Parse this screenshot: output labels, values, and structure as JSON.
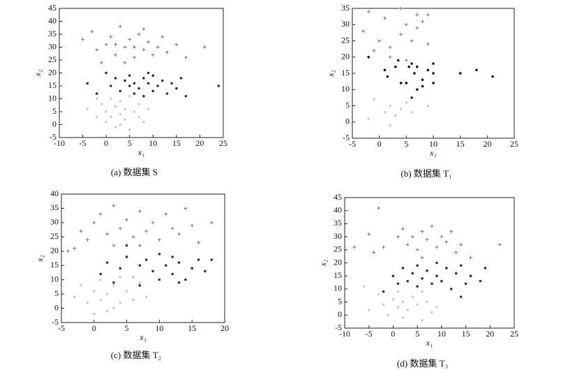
{
  "chart_data": [
    {
      "type": "scatter",
      "caption": "(a) 数据集 S",
      "xlabel": "x₁",
      "ylabel": "x₂",
      "xlim": [
        -10,
        25
      ],
      "ylim": [
        -5,
        45
      ],
      "xticks": [
        -10,
        -5,
        0,
        5,
        10,
        15,
        20,
        25
      ],
      "yticks": [
        -5,
        0,
        5,
        10,
        15,
        20,
        25,
        30,
        35,
        40,
        45
      ],
      "series": [
        {
          "marker": "plus",
          "color": "#777777",
          "x": [
            -5,
            -3,
            -2,
            0,
            1,
            2,
            3,
            4,
            5,
            6,
            7,
            8,
            9,
            10,
            11,
            12,
            13,
            15,
            17,
            21,
            -1,
            4,
            8,
            2,
            6
          ],
          "y": [
            33,
            36,
            29,
            31,
            34,
            27,
            38,
            30,
            33,
            26,
            35,
            29,
            32,
            27,
            30,
            34,
            28,
            31,
            26,
            30,
            24,
            24,
            37,
            31,
            30
          ]
        },
        {
          "marker": "dot",
          "color": "#333333",
          "x": [
            -4,
            -2,
            0,
            1,
            2,
            3,
            4,
            5,
            6,
            6,
            7,
            8,
            8,
            9,
            10,
            10,
            11,
            12,
            13,
            14,
            15,
            16,
            17,
            24,
            5,
            9
          ],
          "y": [
            16,
            12,
            20,
            15,
            18,
            13,
            17,
            19,
            12,
            16,
            14,
            18,
            11,
            16,
            13,
            19,
            15,
            17,
            12,
            16,
            14,
            18,
            11,
            15,
            15,
            20
          ]
        },
        {
          "marker": "dot",
          "color": "#cccccc",
          "x": [
            -4,
            -2,
            -1,
            0,
            0,
            1,
            1,
            2,
            2,
            3,
            3,
            4,
            4,
            5,
            5,
            6,
            7,
            7,
            8,
            9,
            3,
            -2
          ],
          "y": [
            6,
            3,
            8,
            1,
            5,
            10,
            3,
            7,
            -1,
            4,
            9,
            2,
            6,
            11,
            -2,
            5,
            3,
            8,
            1,
            6,
            0,
            10
          ]
        }
      ]
    },
    {
      "type": "scatter",
      "caption": "(b) 数据集 T₁",
      "xlabel": "x₁",
      "ylabel": "x₂",
      "xlim": [
        -5,
        25
      ],
      "ylim": [
        -5,
        35
      ],
      "xticks": [
        -5,
        0,
        5,
        10,
        15,
        20,
        25
      ],
      "yticks": [
        -5,
        0,
        5,
        10,
        15,
        20,
        25,
        30,
        35
      ],
      "series": [
        {
          "marker": "plus",
          "color": "#777777",
          "x": [
            -3,
            -2,
            0,
            1,
            2,
            2,
            4,
            4,
            5,
            6,
            7,
            8,
            9,
            9,
            5,
            -1,
            7
          ],
          "y": [
            28,
            34,
            25,
            32,
            20,
            23,
            27,
            35,
            30,
            25,
            29,
            31,
            33,
            24,
            19,
            22,
            33
          ]
        },
        {
          "marker": "dot",
          "color": "#111111",
          "x": [
            -2,
            1,
            1.5,
            3,
            3.5,
            4,
            5,
            5.5,
            6,
            6.5,
            7,
            7,
            8,
            8,
            9,
            10,
            10,
            10,
            15,
            18,
            21,
            6
          ],
          "y": [
            20,
            16,
            14,
            17,
            19,
            12,
            12,
            17,
            18,
            15,
            10,
            17,
            13,
            11,
            16,
            18,
            15,
            12,
            15,
            16,
            14,
            7.5
          ]
        },
        {
          "marker": "dot",
          "color": "#cccccc",
          "x": [
            -2,
            -1,
            1,
            2,
            3,
            4,
            5,
            6,
            2,
            9
          ],
          "y": [
            1,
            7,
            3,
            5,
            2,
            4,
            6,
            3,
            -1,
            5
          ]
        }
      ]
    },
    {
      "type": "scatter",
      "caption": "(c) 数据集 T₂",
      "xlabel": "x₁",
      "ylabel": "x₂",
      "xlim": [
        -5,
        20
      ],
      "ylim": [
        -5,
        40
      ],
      "xticks": [
        -5,
        0,
        5,
        10,
        15,
        20
      ],
      "yticks": [
        -5,
        0,
        5,
        10,
        15,
        20,
        25,
        30,
        35,
        40
      ],
      "series": [
        {
          "marker": "plus",
          "color": "#777777",
          "x": [
            -4,
            -2,
            -1,
            0,
            1,
            2,
            3,
            4,
            5,
            6,
            7,
            8,
            9,
            10,
            11,
            12,
            13,
            14,
            15,
            16,
            18,
            3,
            7,
            -3
          ],
          "y": [
            20,
            27,
            24,
            30,
            33,
            26,
            36,
            28,
            31,
            25,
            34,
            27,
            30,
            24,
            33,
            28,
            26,
            35,
            29,
            23,
            30,
            22,
            22,
            21
          ]
        },
        {
          "marker": "dot",
          "color": "#333333",
          "x": [
            1,
            2,
            3,
            4,
            5,
            6,
            7,
            7,
            8,
            9,
            10,
            10,
            11,
            12,
            12,
            13,
            14,
            15,
            16,
            17,
            18,
            5,
            13
          ],
          "y": [
            12,
            16,
            9,
            14,
            18,
            11,
            15,
            8,
            17,
            13,
            19,
            10,
            15,
            18,
            12,
            16,
            10,
            14,
            17,
            13,
            17,
            22,
            9
          ]
        },
        {
          "marker": "dot",
          "color": "#cccccc",
          "x": [
            -3,
            -2,
            -1,
            0,
            1,
            1,
            2,
            2,
            3,
            4,
            4,
            5,
            6,
            7,
            8,
            3,
            0,
            6
          ],
          "y": [
            4,
            8,
            2,
            6,
            3,
            10,
            -1,
            5,
            8,
            2,
            11,
            6,
            3,
            9,
            4,
            0,
            -2,
            11
          ]
        }
      ]
    },
    {
      "type": "scatter",
      "caption": "(d) 数据集 T₃",
      "xlabel": "x₁",
      "ylabel": "x₂",
      "xlim": [
        -10,
        25
      ],
      "ylim": [
        -5,
        45
      ],
      "xticks": [
        -10,
        -5,
        0,
        5,
        10,
        15,
        20,
        25
      ],
      "yticks": [
        -5,
        0,
        5,
        10,
        15,
        20,
        25,
        30,
        35,
        40,
        45
      ],
      "series": [
        {
          "marker": "plus",
          "color": "#777777",
          "x": [
            -8,
            -5,
            -3,
            -2,
            1,
            2,
            3,
            4,
            5,
            6,
            7,
            8,
            9,
            10,
            11,
            12,
            13,
            14,
            16,
            22,
            -4,
            6
          ],
          "y": [
            26,
            31,
            41,
            26,
            30,
            33,
            27,
            30,
            25,
            32,
            29,
            34,
            26,
            30,
            28,
            32,
            24,
            27,
            22,
            27,
            24,
            22
          ]
        },
        {
          "marker": "dot",
          "color": "#333333",
          "x": [
            -2,
            0,
            1,
            2,
            3,
            4,
            5,
            5,
            6,
            7,
            8,
            9,
            9,
            10,
            11,
            12,
            13,
            14,
            15,
            16,
            18,
            19,
            14
          ],
          "y": [
            9,
            15,
            12,
            18,
            13,
            16,
            11,
            19,
            14,
            17,
            12,
            15,
            20,
            13,
            18,
            10,
            16,
            19,
            12,
            15,
            13,
            18,
            7
          ]
        },
        {
          "marker": "dot",
          "color": "#cccccc",
          "x": [
            -5,
            -3,
            -2,
            -1,
            0,
            1,
            1,
            2,
            2,
            3,
            4,
            5,
            6,
            6,
            7,
            8,
            9,
            -6
          ],
          "y": [
            2,
            8,
            4,
            0,
            6,
            3,
            9,
            -1,
            5,
            2,
            7,
            4,
            -2,
            9,
            5,
            1,
            3,
            11
          ]
        }
      ]
    }
  ]
}
